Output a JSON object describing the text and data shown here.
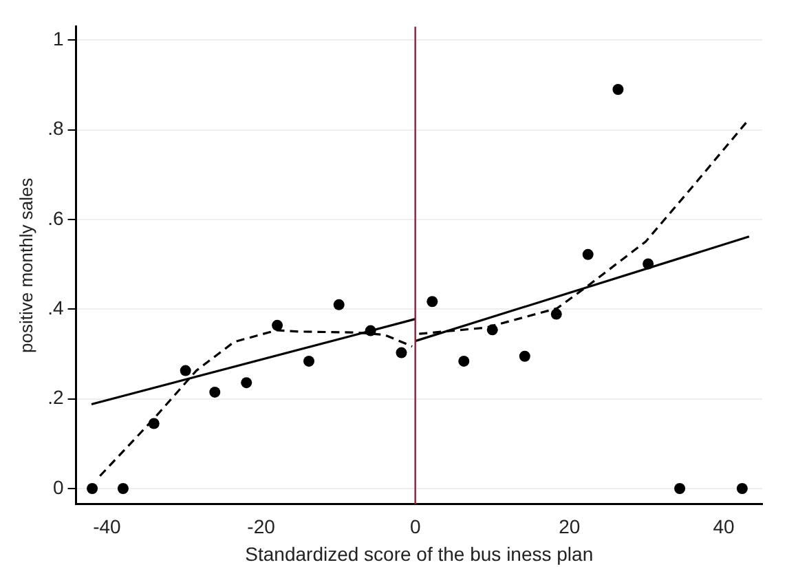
{
  "chart_data": {
    "type": "scatter",
    "xlabel": "Standardized score of the bus iness plan",
    "ylabel": "positive monthly sales",
    "xlim": [
      -44,
      45
    ],
    "xticks": [
      -40,
      -20,
      0,
      20,
      40
    ],
    "ylim": [
      -0.035,
      1.03
    ],
    "yticks": [
      0,
      {
        "value": 0.2,
        "label": ".2"
      },
      {
        "value": 0.4,
        "label": ".4"
      },
      {
        "value": 0.6,
        "label": ".6"
      },
      {
        "value": 0.8,
        "label": ".8"
      },
      1
    ],
    "grid": "y",
    "legend": false,
    "marker": "circle",
    "ref_lines": [
      {
        "axis": "x",
        "value": 0,
        "color": "#8b2333",
        "line_style": "solid"
      }
    ],
    "series": [
      {
        "color": "#000000",
        "x": [
          -41.9,
          -37.9,
          -33.9,
          -29.8,
          -26.0,
          -21.9,
          -17.9,
          -13.8,
          -9.9,
          -5.8,
          -1.8,
          2.2,
          6.3,
          10.0,
          14.2,
          18.3,
          22.4,
          26.3,
          30.2,
          34.3,
          42.4
        ],
        "values": [
          0,
          0,
          0.145,
          0.263,
          0.215,
          0.236,
          0.364,
          0.284,
          0.41,
          0.352,
          0.303,
          0.417,
          0.284,
          0.354,
          0.295,
          0.389,
          0.522,
          0.89,
          0.501,
          0,
          0
        ]
      },
      {
        "type": "line",
        "color": "#000000",
        "marker": "none",
        "line_style": "solid",
        "x": [
          -42,
          0
        ],
        "values": [
          0.188,
          0.378
        ]
      },
      {
        "type": "line",
        "color": "#000000",
        "marker": "none",
        "line_style": "solid",
        "x": [
          0,
          43.3
        ],
        "values": [
          0.329,
          0.562
        ]
      },
      {
        "type": "line",
        "color": "#000000",
        "marker": "none",
        "line_style": "dashed",
        "x": [
          -40.9,
          -33.9,
          -28.4,
          -23.5,
          -18.0,
          -15.0,
          -7.7,
          -4.0,
          -0.4
        ],
        "values": [
          0.028,
          0.156,
          0.263,
          0.327,
          0.353,
          0.35,
          0.348,
          0.343,
          0.317
        ]
      },
      {
        "type": "line",
        "color": "#000000",
        "marker": "none",
        "line_style": "dashed",
        "x": [
          0.5,
          9.2,
          18.4,
          22.6,
          29.9,
          36.0,
          43.3
        ],
        "values": [
          0.345,
          0.359,
          0.402,
          0.455,
          0.551,
          0.674,
          0.824
        ]
      }
    ]
  }
}
